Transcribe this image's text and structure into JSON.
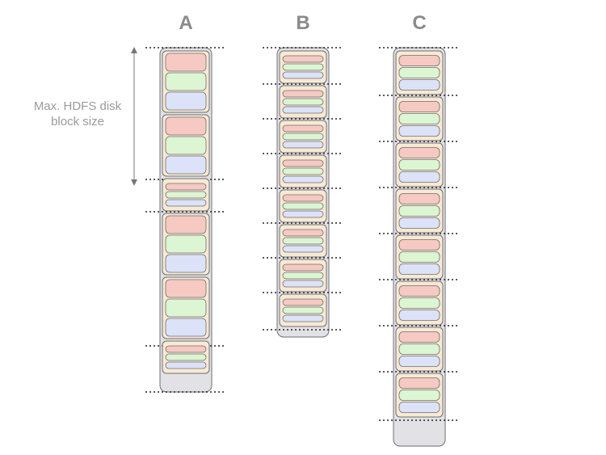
{
  "colors": {
    "outer_fill": "#e2e2e6",
    "outer_stroke": "#6e6e74",
    "block_fill": "#f8e9d2",
    "red": "#f6c9c2",
    "green": "#dcf5d2",
    "blue": "#dce3f8",
    "inner_stroke": "#6e6e74",
    "dotted": "#222222",
    "arrow": "#777777"
  },
  "label": {
    "line1": "Max. HDFS disk",
    "line2": "block size"
  },
  "columns": [
    {
      "title": "A",
      "blocks": [
        "large",
        "large",
        "small",
        "large",
        "large",
        "small"
      ],
      "boundaries": [
        "top",
        "after-2",
        "after-3",
        "after-5",
        "bottom"
      ]
    },
    {
      "title": "B",
      "blocks": [
        "small",
        "small",
        "small",
        "small",
        "small",
        "small",
        "small",
        "small"
      ],
      "boundaries": [
        "every-block"
      ]
    },
    {
      "title": "C",
      "blocks": [
        "medium",
        "medium",
        "medium",
        "medium",
        "medium",
        "medium",
        "medium",
        "medium"
      ],
      "boundaries": [
        "every-block"
      ]
    }
  ]
}
